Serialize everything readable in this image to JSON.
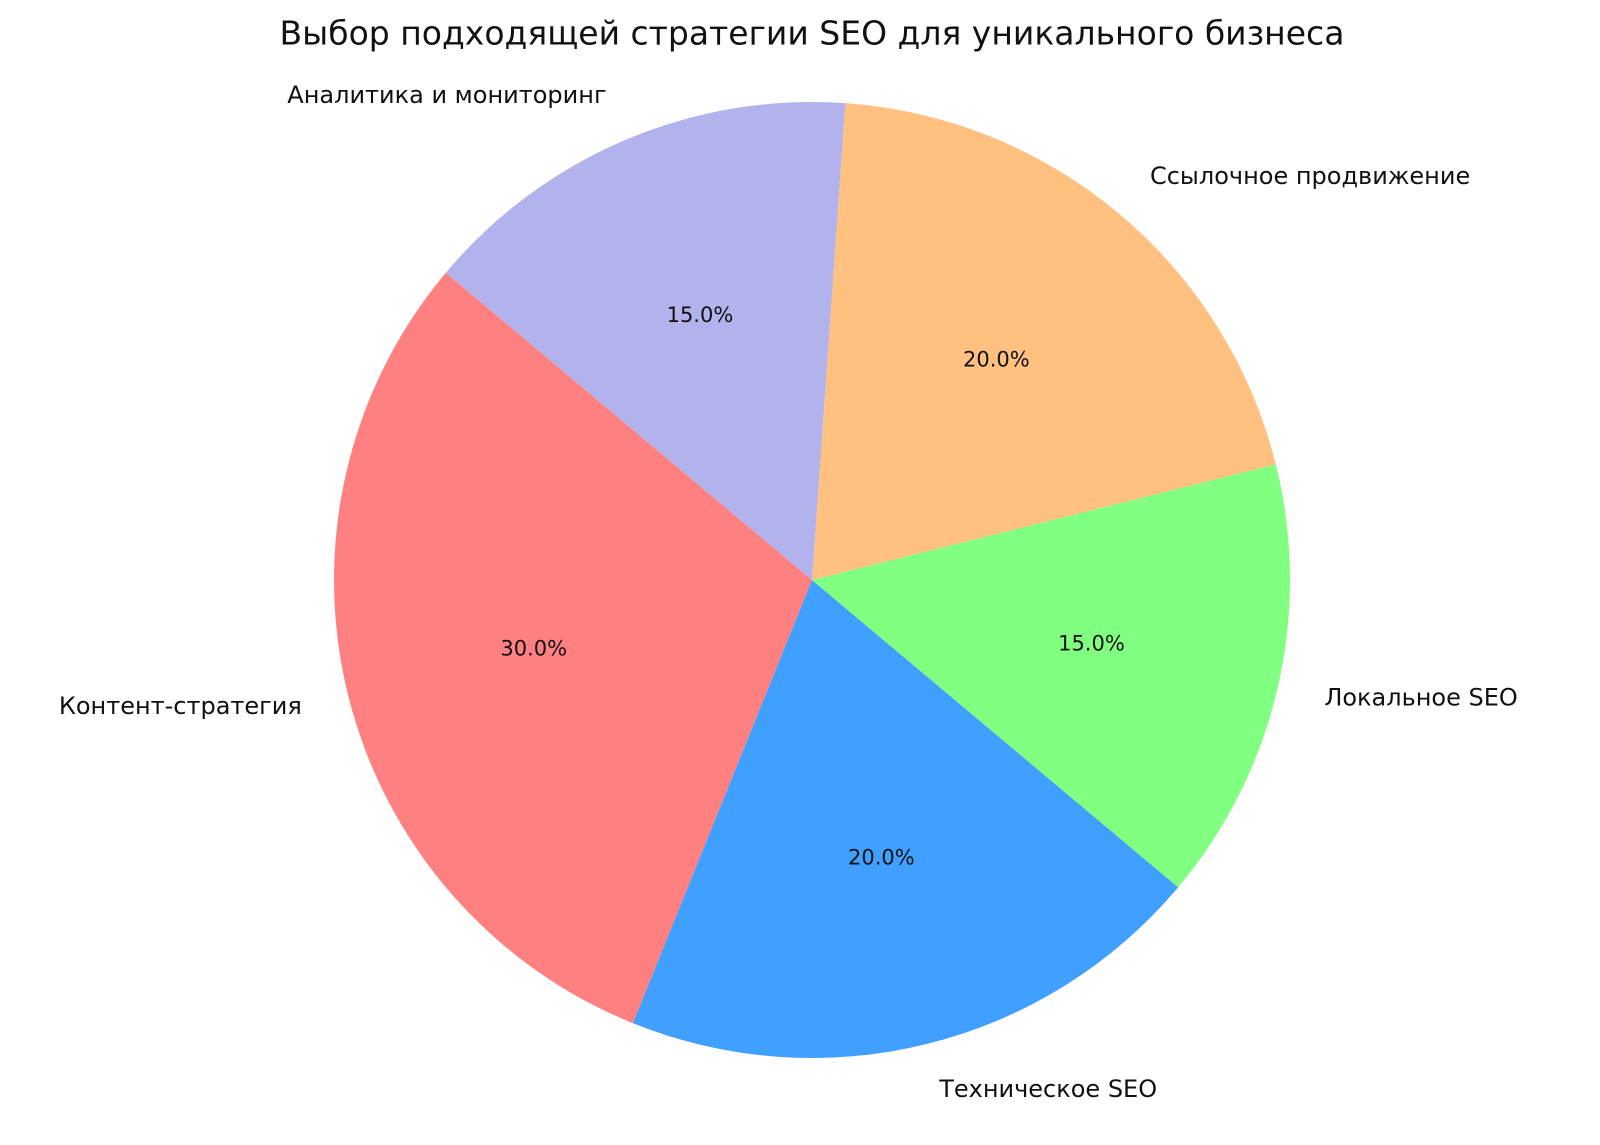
{
  "chart_data": {
    "type": "pie",
    "title": "Выбор подходящей стратегии SEO для уникального бизнеса",
    "categories": [
      "Контент-стратегия",
      "Техническое SEO",
      "Локальное SEO",
      "Ссылочное продвижение",
      "Аналитика и мониторинг"
    ],
    "values": [
      30,
      20,
      15,
      20,
      15
    ],
    "value_labels": [
      "30.0%",
      "20.0%",
      "15.0%",
      "20.0%",
      "15.0%"
    ],
    "colors": [
      "#ff8080",
      "#40a0ff",
      "#80ff80",
      "#ffc080",
      "#b2b2ec"
    ]
  }
}
